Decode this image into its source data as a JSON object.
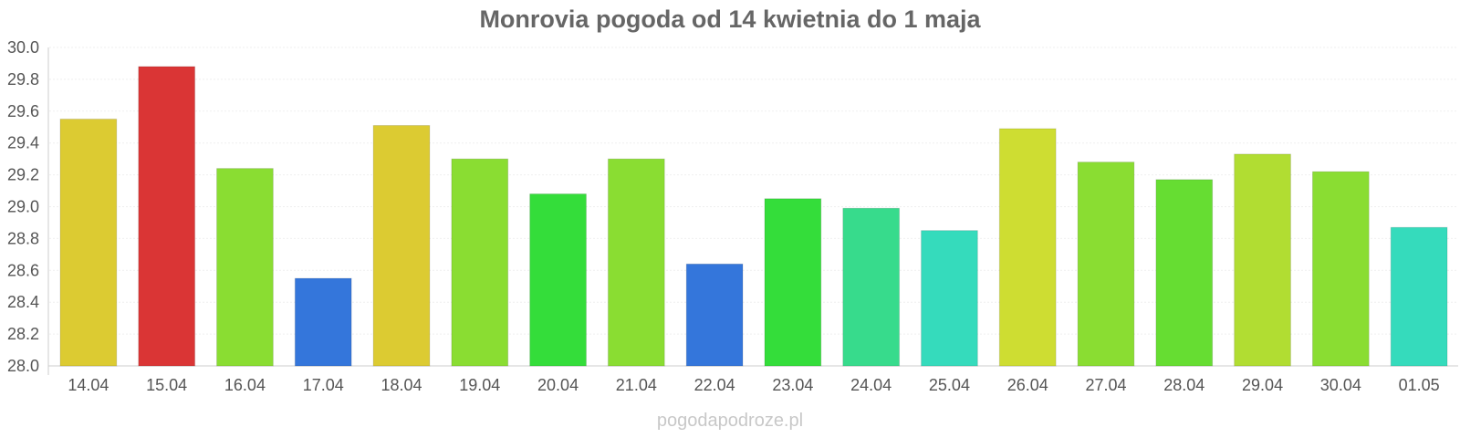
{
  "chart_data": {
    "type": "bar",
    "title": "Monrovia pogoda od 14 kwietnia do 1 maja",
    "xlabel": "",
    "ylabel": "",
    "categories": [
      "14.04",
      "15.04",
      "16.04",
      "17.04",
      "18.04",
      "19.04",
      "20.04",
      "21.04",
      "22.04",
      "23.04",
      "24.04",
      "25.04",
      "26.04",
      "27.04",
      "28.04",
      "29.04",
      "30.04",
      "01.05"
    ],
    "values": [
      29.55,
      29.88,
      29.24,
      28.55,
      29.51,
      29.3,
      29.08,
      29.3,
      28.64,
      29.05,
      28.99,
      28.85,
      29.49,
      29.28,
      29.17,
      29.33,
      29.22,
      28.87
    ],
    "colors": [
      "#dccb32",
      "#da3535",
      "#8add32",
      "#3476db",
      "#dccb32",
      "#8add32",
      "#34dd3a",
      "#8add32",
      "#3476db",
      "#34dd3a",
      "#37db8c",
      "#35dbbc",
      "#cedd32",
      "#8add32",
      "#66dd32",
      "#b1dd32",
      "#8add32",
      "#35dbbc"
    ],
    "ylim": [
      28.0,
      30.0
    ],
    "yticks": [
      "28.0",
      "28.2",
      "28.4",
      "28.6",
      "28.8",
      "29.0",
      "29.2",
      "29.4",
      "29.6",
      "29.8",
      "30.0"
    ],
    "grid": true,
    "legend": "none"
  },
  "watermark": "pogodapodroze.pl"
}
